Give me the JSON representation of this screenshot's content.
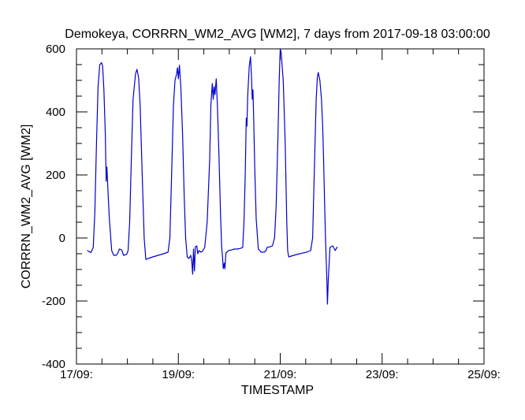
{
  "chart_data": {
    "type": "line",
    "title": "Demokeya, CORRRN_WM2_AVG [WM2], 7 days from  2017-09-18 03:00:00",
    "xlabel": "TIMESTAMP",
    "ylabel": "CORRRN_WM2_AVG [WM2]",
    "x_unit": "days",
    "xlim": [
      "2017-09-17 00:00",
      "2017-09-25 00:00"
    ],
    "ylim": [
      -400,
      600
    ],
    "x_ticks": [
      {
        "x": "2017-09-17 00:00",
        "label": "17/09:"
      },
      {
        "x": "2017-09-19 00:00",
        "label": "19/09:"
      },
      {
        "x": "2017-09-21 00:00",
        "label": "21/09:"
      },
      {
        "x": "2017-09-23 00:00",
        "label": "23/09:"
      },
      {
        "x": "2017-09-25 00:00",
        "label": "25/09:"
      }
    ],
    "x_minor_ticks": [
      "2017-09-17 12:00",
      "2017-09-18 00:00",
      "2017-09-18 12:00",
      "2017-09-19 12:00",
      "2017-09-20 00:00",
      "2017-09-20 12:00",
      "2017-09-21 12:00",
      "2017-09-22 00:00",
      "2017-09-22 12:00",
      "2017-09-23 12:00",
      "2017-09-24 00:00",
      "2017-09-24 12:00"
    ],
    "y_ticks": [
      -400,
      -200,
      0,
      200,
      400,
      600
    ],
    "y_minor_ticks": [
      -350,
      -300,
      -250,
      -150,
      -100,
      -50,
      50,
      100,
      150,
      250,
      300,
      350,
      450,
      500,
      550
    ],
    "grid": false,
    "line_color": "#0000cc",
    "series": [
      {
        "points": [
          [
            "2017-09-17 05:00",
            -40
          ],
          [
            "2017-09-17 06:50",
            -46
          ],
          [
            "2017-09-17 07:55",
            -30
          ],
          [
            "2017-09-17 08:40",
            80
          ],
          [
            "2017-09-17 09:25",
            300
          ],
          [
            "2017-09-17 10:10",
            480
          ],
          [
            "2017-09-17 11:00",
            550
          ],
          [
            "2017-09-17 11:50",
            556
          ],
          [
            "2017-09-17 12:20",
            545
          ],
          [
            "2017-09-17 12:55",
            470
          ],
          [
            "2017-09-17 13:35",
            330
          ],
          [
            "2017-09-17 14:00",
            180
          ],
          [
            "2017-09-17 14:20",
            225
          ],
          [
            "2017-09-17 14:45",
            165
          ],
          [
            "2017-09-17 15:25",
            70
          ],
          [
            "2017-09-17 16:10",
            0
          ],
          [
            "2017-09-17 16:35",
            -40
          ],
          [
            "2017-09-17 17:35",
            -55
          ],
          [
            "2017-09-17 18:40",
            -55
          ],
          [
            "2017-09-17 19:30",
            -48
          ],
          [
            "2017-09-17 20:15",
            -35
          ],
          [
            "2017-09-17 21:20",
            -38
          ],
          [
            "2017-09-17 22:10",
            -55
          ],
          [
            "2017-09-17 23:40",
            -52
          ],
          [
            "2017-09-18 00:20",
            -40
          ],
          [
            "2017-09-18 01:05",
            50
          ],
          [
            "2017-09-18 01:50",
            250
          ],
          [
            "2017-09-18 02:40",
            440
          ],
          [
            "2017-09-18 03:50",
            520
          ],
          [
            "2017-09-18 04:30",
            535
          ],
          [
            "2017-09-18 05:15",
            510
          ],
          [
            "2017-09-18 06:00",
            420
          ],
          [
            "2017-09-18 06:45",
            250
          ],
          [
            "2017-09-18 07:55",
            0
          ],
          [
            "2017-09-18 08:40",
            -68
          ],
          [
            "2017-09-18 09:50",
            -65
          ],
          [
            "2017-09-18 12:00",
            -60
          ],
          [
            "2017-09-18 14:30",
            -55
          ],
          [
            "2017-09-18 17:00",
            -50
          ],
          [
            "2017-09-18 19:10",
            -45
          ],
          [
            "2017-09-18 20:00",
            0
          ],
          [
            "2017-09-18 20:50",
            200
          ],
          [
            "2017-09-18 21:40",
            420
          ],
          [
            "2017-09-18 22:25",
            500
          ],
          [
            "2017-09-18 23:10",
            520
          ],
          [
            "2017-09-18 23:35",
            540
          ],
          [
            "2017-09-19 00:00",
            505
          ],
          [
            "2017-09-19 00:30",
            548
          ],
          [
            "2017-09-19 01:10",
            480
          ],
          [
            "2017-09-19 02:00",
            330
          ],
          [
            "2017-09-19 02:45",
            130
          ],
          [
            "2017-09-19 03:25",
            0
          ],
          [
            "2017-09-19 04:10",
            -60
          ],
          [
            "2017-09-19 05:00",
            -65
          ],
          [
            "2017-09-19 05:50",
            -55
          ],
          [
            "2017-09-19 06:20",
            -75
          ],
          [
            "2017-09-19 06:45",
            -115
          ],
          [
            "2017-09-19 07:10",
            -35
          ],
          [
            "2017-09-19 07:35",
            -105
          ],
          [
            "2017-09-19 08:00",
            -28
          ],
          [
            "2017-09-19 08:40",
            -25
          ],
          [
            "2017-09-19 09:10",
            -50
          ],
          [
            "2017-09-19 09:40",
            -40
          ],
          [
            "2017-09-19 10:40",
            -45
          ],
          [
            "2017-09-19 11:35",
            -40
          ],
          [
            "2017-09-19 12:25",
            -30
          ],
          [
            "2017-09-19 13:35",
            50
          ],
          [
            "2017-09-19 14:45",
            250
          ],
          [
            "2017-09-19 15:20",
            420
          ],
          [
            "2017-09-19 16:00",
            490
          ],
          [
            "2017-09-19 16:25",
            440
          ],
          [
            "2017-09-19 16:50",
            480
          ],
          [
            "2017-09-19 17:15",
            455
          ],
          [
            "2017-09-19 17:50",
            505
          ],
          [
            "2017-09-19 18:25",
            420
          ],
          [
            "2017-09-19 19:10",
            250
          ],
          [
            "2017-09-19 19:50",
            80
          ],
          [
            "2017-09-19 20:25",
            -30
          ],
          [
            "2017-09-19 20:50",
            -60
          ],
          [
            "2017-09-19 21:10",
            -97
          ],
          [
            "2017-09-19 21:35",
            -80
          ],
          [
            "2017-09-19 21:55",
            -98
          ],
          [
            "2017-09-19 22:25",
            -48
          ],
          [
            "2017-09-19 23:35",
            -40
          ],
          [
            "2017-09-20 01:00",
            -38
          ],
          [
            "2017-09-20 02:25",
            -35
          ],
          [
            "2017-09-20 03:50",
            -35
          ],
          [
            "2017-09-20 05:15",
            -33
          ],
          [
            "2017-09-20 06:20",
            -30
          ],
          [
            "2017-09-20 06:55",
            50
          ],
          [
            "2017-09-20 07:30",
            200
          ],
          [
            "2017-09-20 08:00",
            380
          ],
          [
            "2017-09-20 08:20",
            355
          ],
          [
            "2017-09-20 08:40",
            450
          ],
          [
            "2017-09-20 09:25",
            545
          ],
          [
            "2017-09-20 10:00",
            575
          ],
          [
            "2017-09-20 10:25",
            520
          ],
          [
            "2017-09-20 10:50",
            440
          ],
          [
            "2017-09-20 11:10",
            470
          ],
          [
            "2017-09-20 11:30",
            380
          ],
          [
            "2017-09-20 12:00",
            220
          ],
          [
            "2017-09-20 12:40",
            60
          ],
          [
            "2017-09-20 13:40",
            -35
          ],
          [
            "2017-09-20 15:00",
            -45
          ],
          [
            "2017-09-20 16:25",
            -45
          ],
          [
            "2017-09-20 17:20",
            -40
          ],
          [
            "2017-09-20 17:50",
            -30
          ],
          [
            "2017-09-20 19:10",
            -28
          ],
          [
            "2017-09-20 20:20",
            -25
          ],
          [
            "2017-09-20 21:20",
            0
          ],
          [
            "2017-09-20 22:05",
            100
          ],
          [
            "2017-09-20 22:50",
            300
          ],
          [
            "2017-09-20 23:30",
            500
          ],
          [
            "2017-09-21 00:00",
            600
          ],
          [
            "2017-09-21 00:25",
            590
          ],
          [
            "2017-09-21 01:25",
            500
          ],
          [
            "2017-09-21 02:20",
            300
          ],
          [
            "2017-09-21 03:05",
            50
          ],
          [
            "2017-09-21 03:30",
            -40
          ],
          [
            "2017-09-21 04:00",
            -60
          ],
          [
            "2017-09-21 06:20",
            -55
          ],
          [
            "2017-09-21 09:10",
            -50
          ],
          [
            "2017-09-21 12:25",
            -45
          ],
          [
            "2017-09-21 14:20",
            -40
          ],
          [
            "2017-09-21 15:15",
            0
          ],
          [
            "2017-09-21 16:00",
            200
          ],
          [
            "2017-09-21 16:55",
            440
          ],
          [
            "2017-09-21 17:30",
            510
          ],
          [
            "2017-09-21 17:55",
            525
          ],
          [
            "2017-09-21 18:40",
            500
          ],
          [
            "2017-09-21 19:25",
            440
          ],
          [
            "2017-09-21 20:00",
            350
          ],
          [
            "2017-09-21 20:25",
            250
          ],
          [
            "2017-09-21 20:50",
            130
          ],
          [
            "2017-09-21 21:20",
            0
          ],
          [
            "2017-09-21 21:55",
            -120
          ],
          [
            "2017-09-21 22:15",
            -210
          ],
          [
            "2017-09-21 22:40",
            -130
          ],
          [
            "2017-09-21 23:25",
            -30
          ],
          [
            "2017-09-22 00:45",
            -25
          ],
          [
            "2017-09-22 01:55",
            -40
          ],
          [
            "2017-09-22 02:50",
            -28
          ]
        ]
      }
    ]
  }
}
